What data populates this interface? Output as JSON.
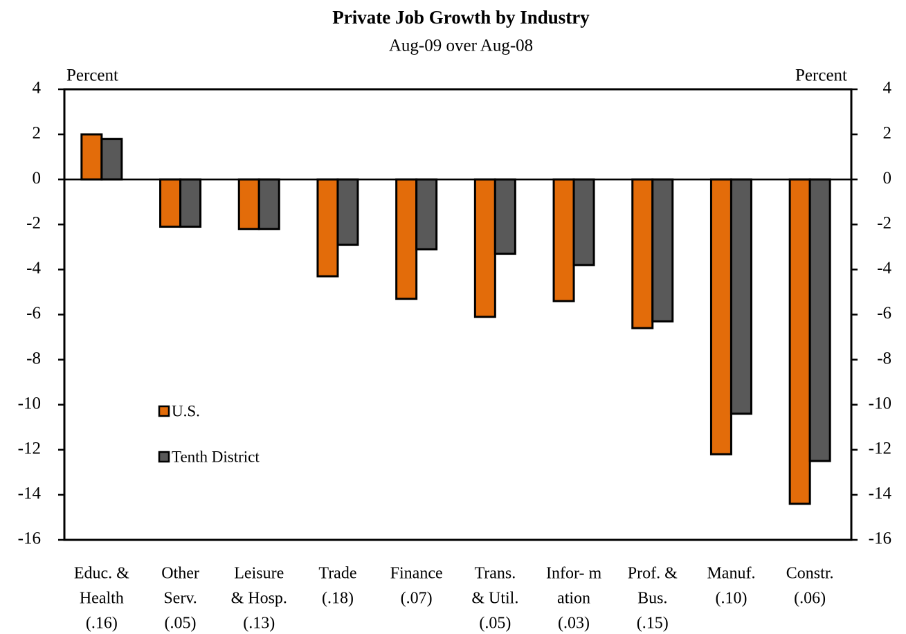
{
  "chart_data": {
    "type": "bar",
    "title": "Private Job Growth by Industry",
    "subtitle": "Aug-09 over Aug-08",
    "y_label": "Percent",
    "y2_label": "Percent",
    "categories": [
      [
        "Educ. &",
        "Health",
        "(.16)"
      ],
      [
        "Other",
        "Serv.",
        "(.05)"
      ],
      [
        "Leisure",
        "& Hosp.",
        "(.13)"
      ],
      [
        "Trade",
        "(.18)"
      ],
      [
        "Finance",
        "(.07)"
      ],
      [
        "Trans.",
        "& Util.",
        "(.05)"
      ],
      [
        "Infor- m",
        "ation",
        "(.03)"
      ],
      [
        "Prof. &",
        "Bus.",
        "(.15)"
      ],
      [
        "Manuf.",
        "(.10)"
      ],
      [
        "Constr.",
        "(.06)"
      ]
    ],
    "series": [
      {
        "name": "U.S.",
        "color": "#e36c0a",
        "values": [
          2.0,
          -2.1,
          -2.2,
          -4.3,
          -5.3,
          -6.1,
          -5.4,
          -6.6,
          -12.2,
          -14.4
        ]
      },
      {
        "name": "Tenth District",
        "color": "#595959",
        "values": [
          1.8,
          -2.1,
          -2.2,
          -2.9,
          -3.1,
          -3.3,
          -3.8,
          -6.3,
          -10.4,
          -12.5
        ]
      }
    ],
    "ylim": [
      -16,
      4
    ],
    "yticks": [
      -16,
      -14,
      -12,
      -10,
      -8,
      -6,
      -4,
      -2,
      0,
      2,
      4
    ],
    "y2lim": [
      -16,
      4
    ],
    "y2ticks": [
      -16,
      -14,
      -12,
      -10,
      -8,
      -6,
      -4,
      -2,
      0,
      2,
      4
    ],
    "legend": "lower left",
    "grid": false
  }
}
